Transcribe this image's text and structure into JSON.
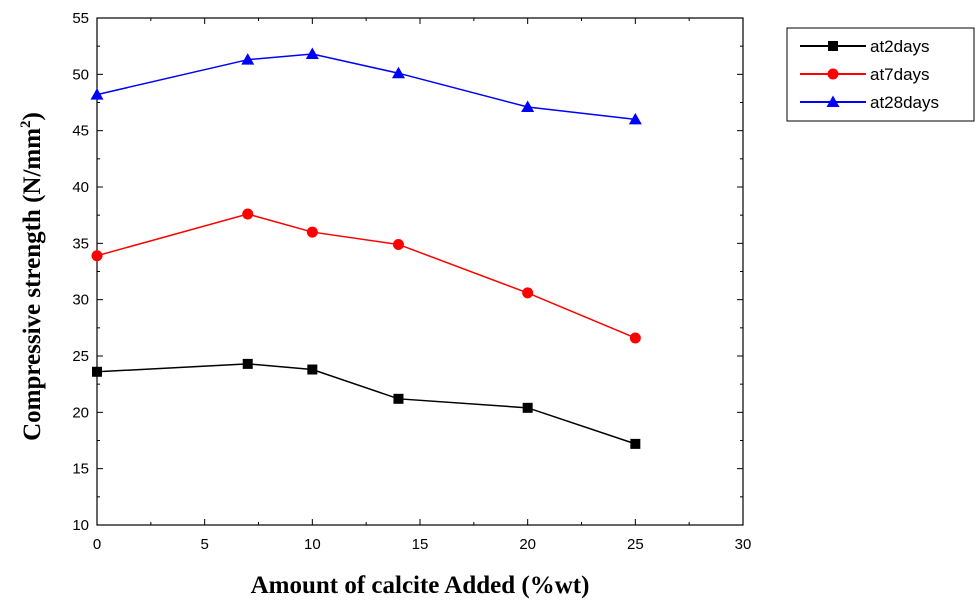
{
  "chart_data": {
    "type": "line",
    "title": "",
    "xlabel": "Amount of calcite Added (%wt)",
    "ylabel_main": "Compressive strength (N/mm",
    "ylabel_sup": "2",
    "ylabel_close": ")",
    "xlim": [
      0,
      30
    ],
    "ylim": [
      10,
      55
    ],
    "xticks": [
      0,
      5,
      10,
      15,
      20,
      25,
      30
    ],
    "yticks": [
      10,
      15,
      20,
      25,
      30,
      35,
      40,
      45,
      50,
      55
    ],
    "grid": false,
    "legend_position": "top-right, outside plot",
    "x": [
      0,
      7,
      10,
      14,
      20,
      25
    ],
    "series": [
      {
        "name": "at2days",
        "color": "#000000",
        "marker": "square",
        "values": [
          23.6,
          24.3,
          23.8,
          21.2,
          20.4,
          17.2
        ]
      },
      {
        "name": "at7days",
        "color": "#ff0000",
        "marker": "circle",
        "values": [
          33.9,
          37.6,
          36.0,
          34.9,
          30.6,
          26.6
        ]
      },
      {
        "name": "at28days",
        "color": "#0000ff",
        "marker": "triangle",
        "values": [
          48.2,
          51.3,
          51.8,
          50.1,
          47.1,
          46.0
        ]
      }
    ]
  }
}
